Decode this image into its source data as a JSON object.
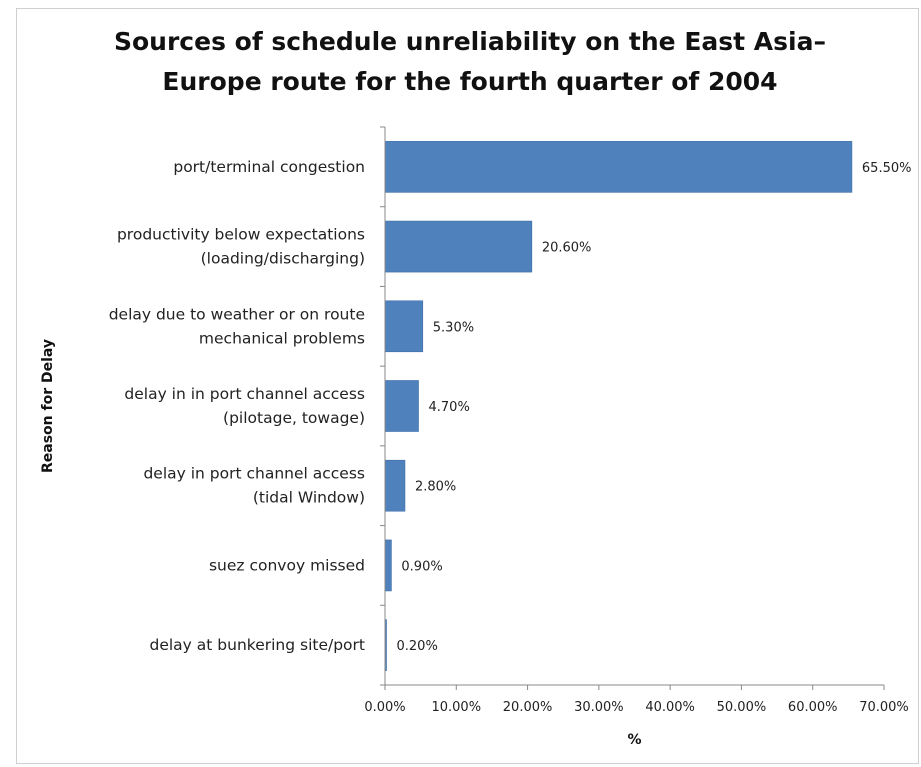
{
  "chart_data": {
    "type": "bar",
    "orientation": "horizontal",
    "title": "Sources of schedule unreliability on the East Asia–\nEurope route for the fourth quarter of 2004",
    "xlabel": "%",
    "ylabel": "Reason for Delay",
    "xlim": [
      0,
      70
    ],
    "xticks": [
      "0.00%",
      "10.00%",
      "20.00%",
      "30.00%",
      "40.00%",
      "50.00%",
      "60.00%",
      "70.00%"
    ],
    "grid": false,
    "legend": "none",
    "bar_color": "#4f81bd",
    "categories": [
      [
        "port/terminal congestion"
      ],
      [
        "productivity below expectations",
        "(loading/discharging)"
      ],
      [
        "delay due to weather or on route",
        "mechanical problems"
      ],
      [
        "delay in in port channel access",
        "(pilotage, towage)"
      ],
      [
        "delay in port channel access",
        "(tidal Window)"
      ],
      [
        "suez convoy missed"
      ],
      [
        "delay at bunkering site/port"
      ]
    ],
    "values": [
      65.5,
      20.6,
      5.3,
      4.7,
      2.8,
      0.9,
      0.2
    ],
    "data_labels": [
      "65.50%",
      "20.60%",
      "5.30%",
      "4.70%",
      "2.80%",
      "0.90%",
      "0.20%"
    ]
  }
}
